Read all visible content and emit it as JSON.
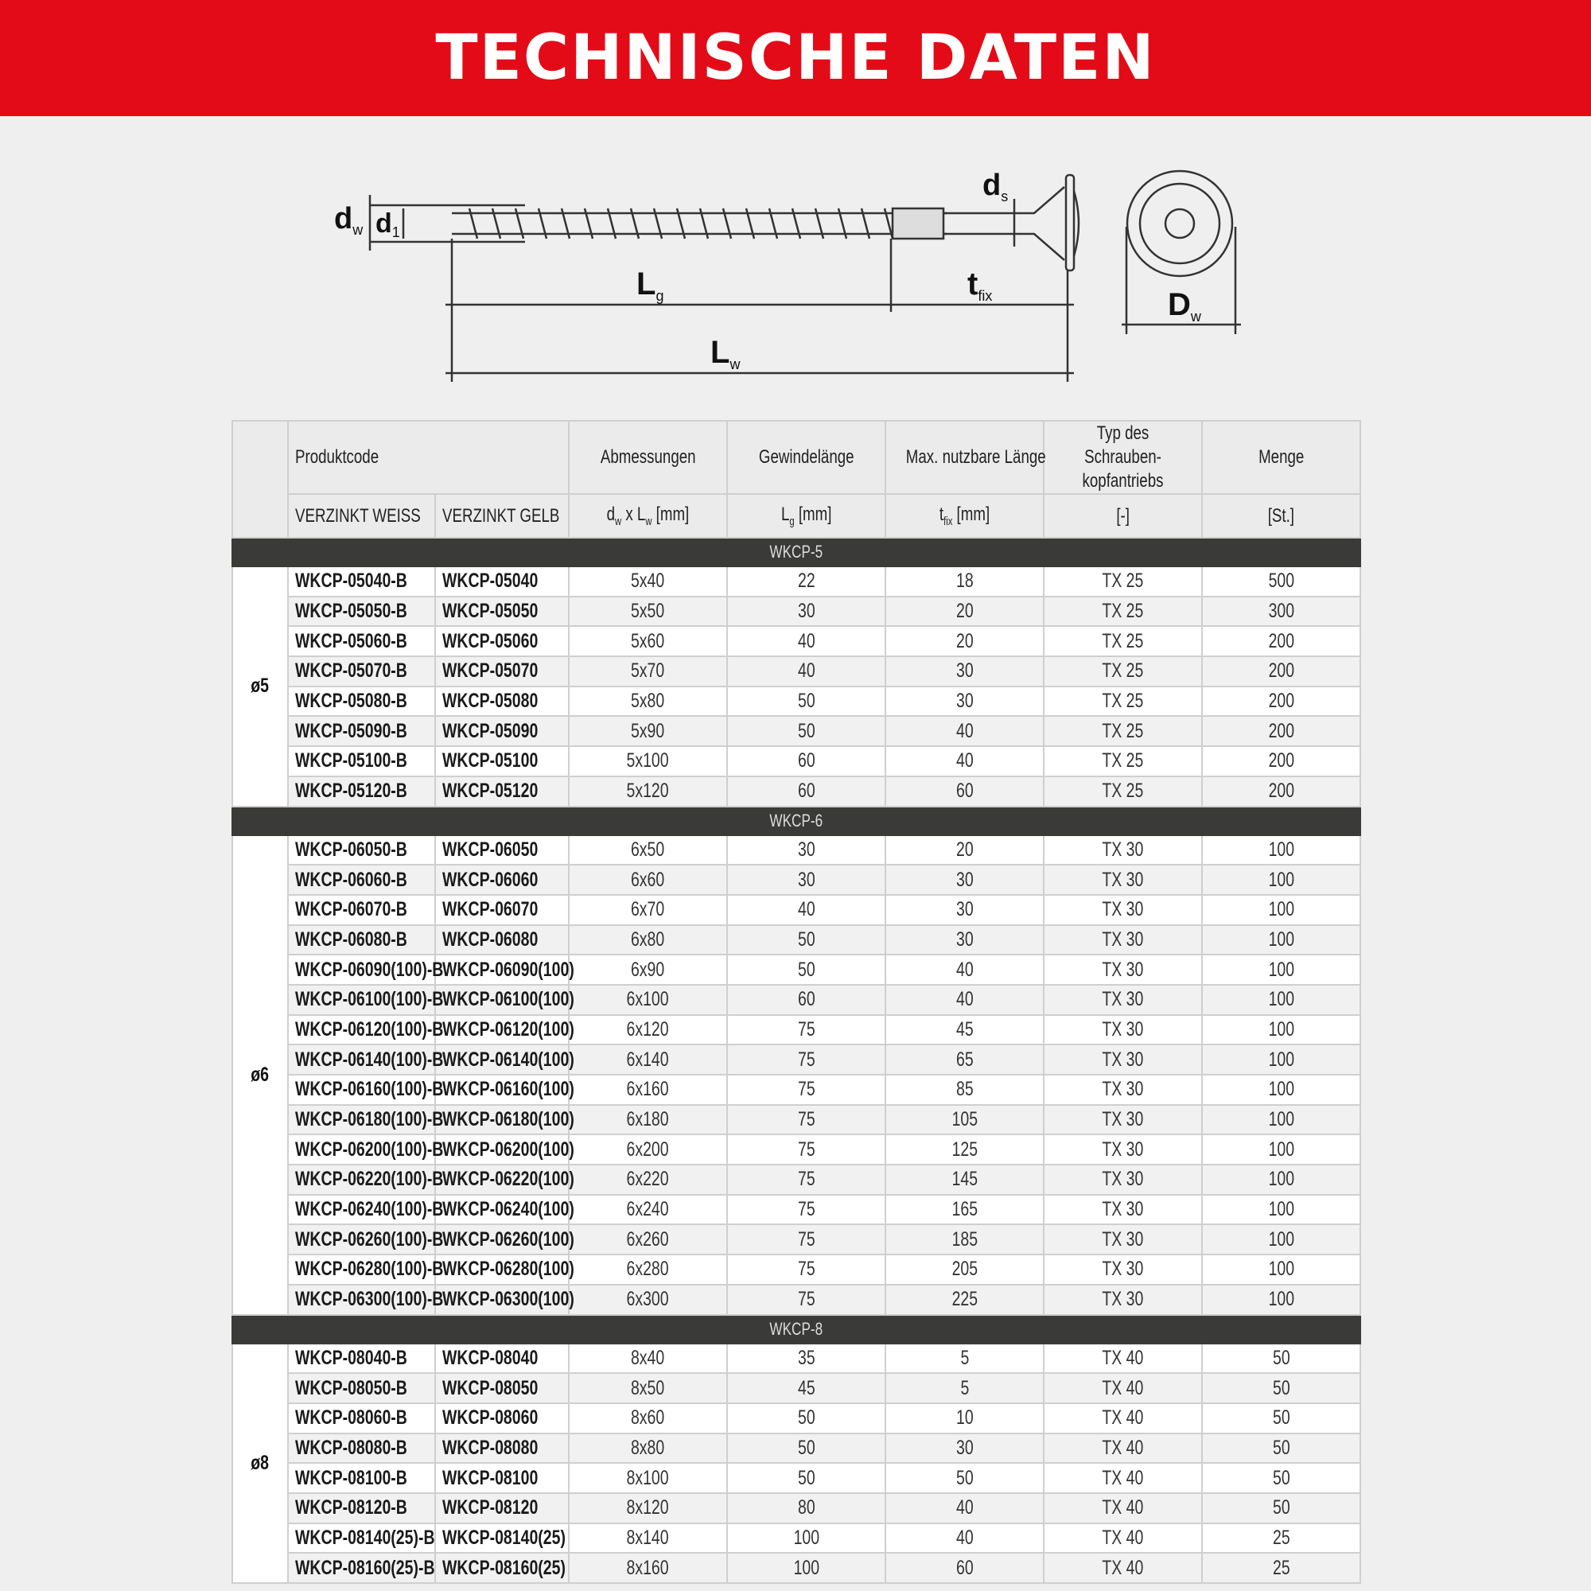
{
  "header": {
    "title": "TECHNISCHE DATEN",
    "color": "#e30b17"
  },
  "diagram": {
    "labels": {
      "dw": "d",
      "dw_sub": "w",
      "d1": "d",
      "d1_sub": "1",
      "ds": "d",
      "ds_sub": "s",
      "lg": "L",
      "lg_sub": "g",
      "tfix": "t",
      "tfix_sub": "fix",
      "lw": "L",
      "lw_sub": "w",
      "Dw": "D",
      "Dw_sub": "w"
    }
  },
  "table": {
    "headers": {
      "produktcode": "Produktcode",
      "abmessungen": "Abmessungen",
      "gewinde": "Gewindelänge",
      "max_laenge": "Max. nutzbare Länge",
      "typ_line1": "Typ des Schrauben-",
      "typ_line2": "kopfantriebs",
      "menge": "Menge"
    },
    "subheaders": {
      "weiss": "VERZINKT WEISS",
      "gelb": "VERZINKT GELB",
      "abm_a": "d",
      "abm_a_sub": "w",
      "abm_mid": " x L",
      "abm_b_sub": "w",
      "abm_unit": " [mm]",
      "gew": "L",
      "gew_sub": "g",
      "gew_unit": " [mm]",
      "max": "t",
      "max_sub": "fix",
      "max_unit": " [mm]",
      "typ": "[-]",
      "menge": "[St.]"
    },
    "groups": [
      {
        "section": "WKCP-5",
        "diameter": "ø5",
        "rows": [
          [
            "WKCP-05040-B",
            "WKCP-05040",
            "5x40",
            "22",
            "18",
            "TX 25",
            "500"
          ],
          [
            "WKCP-05050-B",
            "WKCP-05050",
            "5x50",
            "30",
            "20",
            "TX 25",
            "300"
          ],
          [
            "WKCP-05060-B",
            "WKCP-05060",
            "5x60",
            "40",
            "20",
            "TX 25",
            "200"
          ],
          [
            "WKCP-05070-B",
            "WKCP-05070",
            "5x70",
            "40",
            "30",
            "TX 25",
            "200"
          ],
          [
            "WKCP-05080-B",
            "WKCP-05080",
            "5x80",
            "50",
            "30",
            "TX 25",
            "200"
          ],
          [
            "WKCP-05090-B",
            "WKCP-05090",
            "5x90",
            "50",
            "40",
            "TX 25",
            "200"
          ],
          [
            "WKCP-05100-B",
            "WKCP-05100",
            "5x100",
            "60",
            "40",
            "TX 25",
            "200"
          ],
          [
            "WKCP-05120-B",
            "WKCP-05120",
            "5x120",
            "60",
            "60",
            "TX 25",
            "200"
          ]
        ]
      },
      {
        "section": "WKCP-6",
        "diameter": "ø6",
        "rows": [
          [
            "WKCP-06050-B",
            "WKCP-06050",
            "6x50",
            "30",
            "20",
            "TX 30",
            "100"
          ],
          [
            "WKCP-06060-B",
            "WKCP-06060",
            "6x60",
            "30",
            "30",
            "TX 30",
            "100"
          ],
          [
            "WKCP-06070-B",
            "WKCP-06070",
            "6x70",
            "40",
            "30",
            "TX 30",
            "100"
          ],
          [
            "WKCP-06080-B",
            "WKCP-06080",
            "6x80",
            "50",
            "30",
            "TX 30",
            "100"
          ],
          [
            "WKCP-06090(100)-B",
            "WKCP-06090(100)",
            "6x90",
            "50",
            "40",
            "TX 30",
            "100"
          ],
          [
            "WKCP-06100(100)-B",
            "WKCP-06100(100)",
            "6x100",
            "60",
            "40",
            "TX 30",
            "100"
          ],
          [
            "WKCP-06120(100)-B",
            "WKCP-06120(100)",
            "6x120",
            "75",
            "45",
            "TX 30",
            "100"
          ],
          [
            "WKCP-06140(100)-B",
            "WKCP-06140(100)",
            "6x140",
            "75",
            "65",
            "TX 30",
            "100"
          ],
          [
            "WKCP-06160(100)-B",
            "WKCP-06160(100)",
            "6x160",
            "75",
            "85",
            "TX 30",
            "100"
          ],
          [
            "WKCP-06180(100)-B",
            "WKCP-06180(100)",
            "6x180",
            "75",
            "105",
            "TX 30",
            "100"
          ],
          [
            "WKCP-06200(100)-B",
            "WKCP-06200(100)",
            "6x200",
            "75",
            "125",
            "TX 30",
            "100"
          ],
          [
            "WKCP-06220(100)-B",
            "WKCP-06220(100)",
            "6x220",
            "75",
            "145",
            "TX 30",
            "100"
          ],
          [
            "WKCP-06240(100)-B",
            "WKCP-06240(100)",
            "6x240",
            "75",
            "165",
            "TX 30",
            "100"
          ],
          [
            "WKCP-06260(100)-B",
            "WKCP-06260(100)",
            "6x260",
            "75",
            "185",
            "TX 30",
            "100"
          ],
          [
            "WKCP-06280(100)-B",
            "WKCP-06280(100)",
            "6x280",
            "75",
            "205",
            "TX 30",
            "100"
          ],
          [
            "WKCP-06300(100)-B",
            "WKCP-06300(100)",
            "6x300",
            "75",
            "225",
            "TX 30",
            "100"
          ]
        ]
      },
      {
        "section": "WKCP-8",
        "diameter": "ø8",
        "rows": [
          [
            "WKCP-08040-B",
            "WKCP-08040",
            "8x40",
            "35",
            "5",
            "TX 40",
            "50"
          ],
          [
            "WKCP-08050-B",
            "WKCP-08050",
            "8x50",
            "45",
            "5",
            "TX 40",
            "50"
          ],
          [
            "WKCP-08060-B",
            "WKCP-08060",
            "8x60",
            "50",
            "10",
            "TX 40",
            "50"
          ],
          [
            "WKCP-08080-B",
            "WKCP-08080",
            "8x80",
            "50",
            "30",
            "TX 40",
            "50"
          ],
          [
            "WKCP-08100-B",
            "WKCP-08100",
            "8x100",
            "50",
            "50",
            "TX 40",
            "50"
          ],
          [
            "WKCP-08120-B",
            "WKCP-08120",
            "8x120",
            "80",
            "40",
            "TX 40",
            "50"
          ],
          [
            "WKCP-08140(25)-B",
            "WKCP-08140(25)",
            "8x140",
            "100",
            "40",
            "TX 40",
            "25"
          ],
          [
            "WKCP-08160(25)-B",
            "WKCP-08160(25)",
            "8x160",
            "100",
            "60",
            "TX 40",
            "25"
          ]
        ]
      }
    ]
  }
}
